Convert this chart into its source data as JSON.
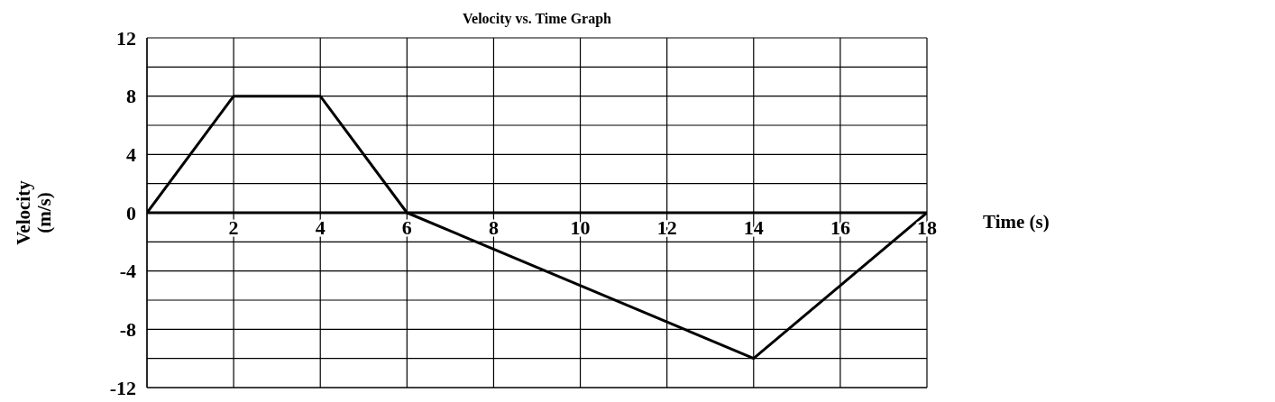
{
  "chart_data": {
    "type": "line",
    "title": "Velocity vs. Time Graph",
    "xlabel": "Time (s)",
    "ylabel": "Velocity (m/s)",
    "x": [
      0,
      2,
      4,
      6,
      14,
      18
    ],
    "series": [
      {
        "color": "#000000",
        "values": [
          0,
          8,
          8,
          0,
          -10,
          0
        ]
      }
    ],
    "xlim": [
      0,
      18
    ],
    "xticks": [
      {
        "value": 0,
        "label": null
      },
      2,
      4,
      6,
      8,
      10,
      12,
      14,
      16,
      18
    ],
    "ylim": [
      -12,
      12
    ],
    "yticks": [
      -12,
      {
        "value": -10,
        "label": null
      },
      -8,
      {
        "value": -6,
        "label": null
      },
      -4,
      {
        "value": -2,
        "label": null
      },
      0,
      {
        "value": 2,
        "label": null
      },
      4,
      {
        "value": 6,
        "label": null
      },
      8,
      {
        "value": 10,
        "label": null
      },
      12
    ],
    "grid": true,
    "legend": false,
    "marker": "none",
    "line_style": "solid"
  }
}
